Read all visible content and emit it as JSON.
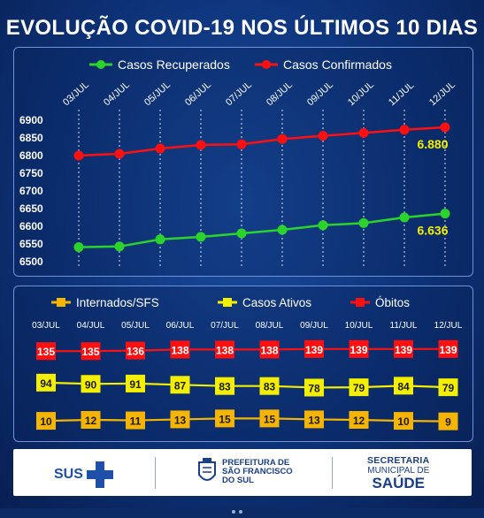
{
  "title": "EVOLUÇÃO COVID-19 NOS ÚLTIMOS 10 DIAS",
  "chart_data": [
    {
      "type": "line",
      "categories": [
        "03/JUL",
        "04/JUL",
        "05/JUL",
        "06/JUL",
        "07/JUL",
        "08/JUL",
        "09/JUL",
        "10/JUL",
        "11/JUL",
        "12/JUL"
      ],
      "ylim": [
        6500,
        6900
      ],
      "yticks": [
        "6500",
        "6550",
        "6600",
        "6650",
        "6700",
        "6750",
        "6800",
        "6850",
        "6900"
      ],
      "series": [
        {
          "name": "Casos Recuperados",
          "color": "#2bd42b",
          "values": [
            6541,
            6543,
            6563,
            6570,
            6580,
            6590,
            6603,
            6609,
            6625,
            6636
          ],
          "last_label": "6.636"
        },
        {
          "name": "Casos Confirmados",
          "color": "#ff1010",
          "values": [
            6800,
            6805,
            6820,
            6830,
            6832,
            6847,
            6856,
            6864,
            6873,
            6880
          ],
          "last_label": "6.880"
        }
      ]
    },
    {
      "type": "line",
      "categories": [
        "03/JUL",
        "04/JUL",
        "05/JUL",
        "06/JUL",
        "07/JUL",
        "08/JUL",
        "09/JUL",
        "10/JUL",
        "11/JUL",
        "12/JUL"
      ],
      "series": [
        {
          "name": "Internados/SFS",
          "color": "#f5b400",
          "values": [
            10,
            12,
            11,
            13,
            15,
            15,
            13,
            12,
            10,
            9
          ]
        },
        {
          "name": "Casos Ativos",
          "color": "#f4ee00",
          "values": [
            94,
            90,
            91,
            87,
            83,
            83,
            78,
            79,
            84,
            79
          ]
        },
        {
          "name": "Óbitos",
          "color": "#ff1010",
          "values": [
            135,
            135,
            136,
            138,
            138,
            138,
            139,
            139,
            139,
            139
          ]
        }
      ]
    }
  ],
  "footer": {
    "sus": "SUS",
    "pref_lines": [
      "PREFEITURA DE",
      "SÃO FRANCISCO",
      "DO SUL"
    ],
    "sec_lines": [
      "SECRETARIA",
      "MUNICIPAL DE",
      "SAÚDE"
    ]
  }
}
